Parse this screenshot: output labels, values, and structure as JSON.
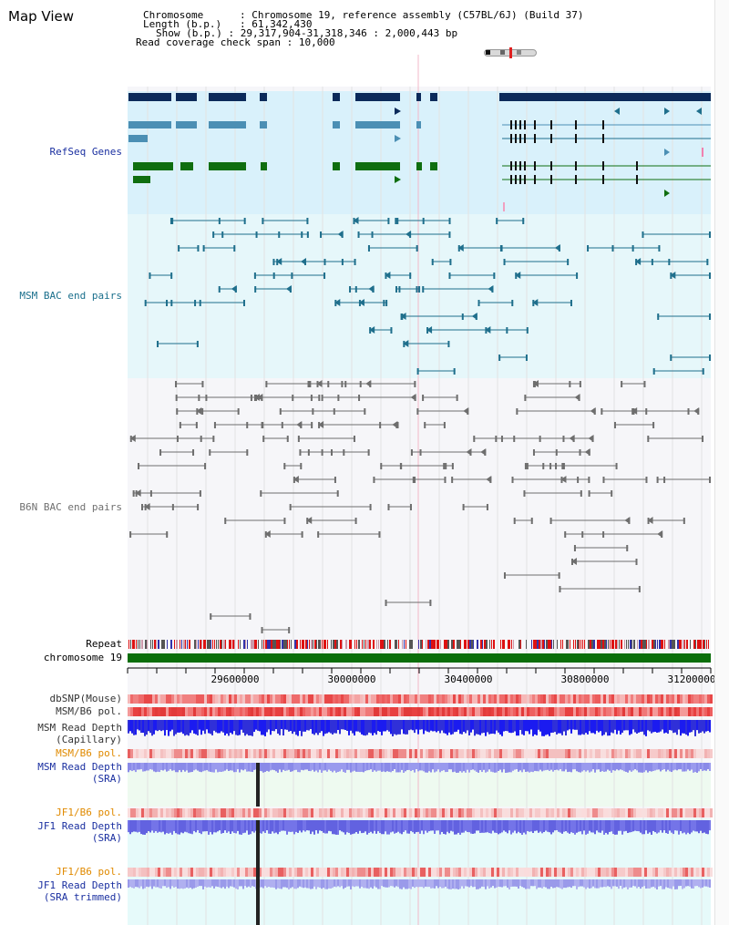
{
  "title": "Map View",
  "info": {
    "chromosome_key": "Chromosome",
    "chromosome_val": "Chromosome 19, reference assembly (C57BL/6J) (Build 37)",
    "length_key": "Length (b.p.)",
    "length_val": "61,342,430",
    "show_key": "Show (b.p.)",
    "show_val": "29,317,904-31,318,346 : 2,000,443 bp",
    "span_key": "Read coverage check span",
    "span_val": "10,000"
  },
  "tracks": {
    "refseq": "RefSeq Genes",
    "msm_bac": "MSM BAC end pairs",
    "b6n_bac": "B6N BAC end pairs",
    "repeat": "Repeat",
    "chromosome": "chromosome 19",
    "dbsnp": "dbSNP(Mouse)",
    "msm_b6_pol_1": "MSM/B6 pol.",
    "msm_depth_cap_1": "MSM Read Depth",
    "msm_depth_cap_2": "(Capillary)",
    "msm_b6_pol_2": "MSM/B6 pol.",
    "msm_depth_sra_1": "MSM Read Depth",
    "msm_depth_sra_2": "(SRA)",
    "jf1_b6_pol_1": "JF1/B6 pol.",
    "jf1_depth_sra_1": "JF1 Read Depth",
    "jf1_depth_sra_2": "(SRA)",
    "jf1_b6_pol_2": "JF1/B6 pol.",
    "jf1_depth_trim_1": "JF1 Read Depth",
    "jf1_depth_trim_2": "(SRA trimmed)"
  },
  "axis": {
    "ticks": [
      "29600000",
      "30000000",
      "30400000",
      "30800000",
      "31200000"
    ]
  },
  "colors": {
    "refseq_bg": "#d9f1fb",
    "msm_bac_bg": "#e6f7fa",
    "navy": "#0b2a5a",
    "steel": "#4b8fb4",
    "green": "#0f6e0f",
    "teal": "#1f6f8c",
    "gray": "#6e6e6e",
    "chromosome": "#0a6e0a",
    "label_refseq": "#1a2fa0",
    "label_msm": "#1a6f8c",
    "label_b6n": "#707070",
    "label_orange": "#e08a00",
    "label_blue": "#1a2fa0"
  }
}
